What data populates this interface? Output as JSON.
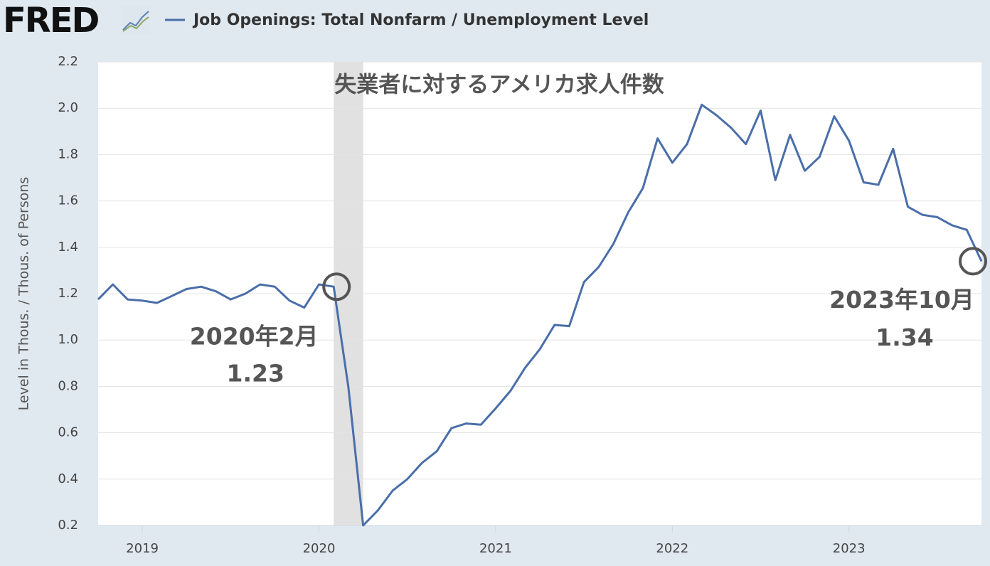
{
  "logo": "FRED",
  "chart_data": {
    "type": "line",
    "title": "失業者に対するアメリカ求人件数",
    "y_label": "Level in Thous. / Thous. of Persons",
    "x": [
      "2018-10",
      "2018-11",
      "2018-12",
      "2019-01",
      "2019-02",
      "2019-03",
      "2019-04",
      "2019-05",
      "2019-06",
      "2019-07",
      "2019-08",
      "2019-09",
      "2019-10",
      "2019-11",
      "2019-12",
      "2020-01",
      "2020-02",
      "2020-03",
      "2020-04",
      "2020-05",
      "2020-06",
      "2020-07",
      "2020-08",
      "2020-09",
      "2020-10",
      "2020-11",
      "2020-12",
      "2021-01",
      "2021-02",
      "2021-03",
      "2021-04",
      "2021-05",
      "2021-06",
      "2021-07",
      "2021-08",
      "2021-09",
      "2021-10",
      "2021-11",
      "2021-12",
      "2022-01",
      "2022-02",
      "2022-03",
      "2022-04",
      "2022-05",
      "2022-06",
      "2022-07",
      "2022-08",
      "2022-09",
      "2022-10",
      "2022-11",
      "2022-12",
      "2023-01",
      "2023-02",
      "2023-03",
      "2023-04",
      "2023-05",
      "2023-06",
      "2023-07",
      "2023-08",
      "2023-09",
      "2023-10"
    ],
    "series": [
      {
        "name": "Job Openings: Total Nonfarm / Unemployment Level",
        "color": "#4a6ea9",
        "values": [
          1.175,
          1.24,
          1.175,
          1.17,
          1.16,
          1.19,
          1.22,
          1.23,
          1.21,
          1.175,
          1.2,
          1.24,
          1.23,
          1.17,
          1.14,
          1.24,
          1.23,
          0.795,
          0.2,
          0.265,
          0.35,
          0.4,
          0.47,
          0.52,
          0.62,
          0.64,
          0.635,
          0.705,
          0.78,
          0.88,
          0.96,
          1.065,
          1.06,
          1.25,
          1.315,
          1.415,
          1.55,
          1.655,
          1.87,
          1.765,
          1.845,
          2.015,
          1.97,
          1.915,
          1.845,
          1.99,
          1.69,
          1.885,
          1.73,
          1.79,
          1.965,
          1.86,
          1.68,
          1.67,
          1.825,
          1.575,
          1.54,
          1.53,
          1.495,
          1.475,
          1.34
        ]
      }
    ],
    "xlim": [
      "2018-10",
      "2023-10"
    ],
    "xticks": [
      {
        "value": "2019-01",
        "label": "2019"
      },
      {
        "value": "2020-01",
        "label": "2020"
      },
      {
        "value": "2021-01",
        "label": "2021"
      },
      {
        "value": "2022-01",
        "label": "2022"
      },
      {
        "value": "2023-01",
        "label": "2023"
      }
    ],
    "ylim": [
      0.2,
      2.2
    ],
    "yticks": [
      0.2,
      0.4,
      0.6,
      0.8,
      {
        "value": 1,
        "label": "1.0"
      },
      1.2,
      1.4,
      1.6,
      1.8,
      {
        "value": 2,
        "label": "2.0"
      },
      2.2
    ],
    "grid": true,
    "recessions": [
      {
        "start": "2020-02",
        "end": "2020-04"
      }
    ],
    "annotations": [
      {
        "x": "2020-02",
        "text": "2020年2月"
      },
      {
        "x": "2023-10",
        "text": "2023年10月"
      }
    ]
  }
}
